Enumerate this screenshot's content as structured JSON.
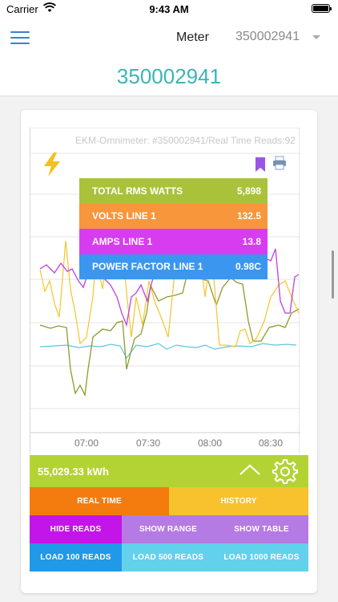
{
  "status": {
    "carrier": "Carrier",
    "time": "9:43 AM"
  },
  "nav": {
    "title": "Meter",
    "meter_select": "350002941"
  },
  "page_title": "350002941",
  "chart": {
    "caption": "EKM-Omnimeter: #350002941/Real Time Reads:92",
    "x_ticks": [
      "07:00",
      "07:30",
      "08:00",
      "08:30"
    ]
  },
  "tooltip": [
    {
      "label": "TOTAL RMS WATTS",
      "value": "5,898",
      "color": "#a9c23a"
    },
    {
      "label": "VOLTS LINE 1",
      "value": "132.5",
      "color": "#f7963a"
    },
    {
      "label": "AMPS LINE 1",
      "value": "13.8",
      "color": "#d83cf0"
    },
    {
      "label": "POWER FACTOR LINE 1",
      "value": "0.98C",
      "color": "#3b96f0"
    }
  ],
  "kwh": "55,029.33 kWh",
  "buttons": {
    "real_time": "REAL TIME",
    "history": "HISTORY",
    "hide_reads": "HIDE READS",
    "show_range": "SHOW RANGE",
    "show_table": "SHOW TABLE",
    "load_100": "LOAD 100 READS",
    "load_500": "LOAD 500 READS",
    "load_1000": "LOAD 1000 READS"
  },
  "colors": {
    "accent": "#3cb5b6",
    "menu": "#3b7fd4",
    "watts_series": "#8f9a2a",
    "volts_series": "#f5c42c",
    "amps_series": "#c13fe0",
    "pf_series": "#5fc3e4"
  },
  "icons": {
    "bolt": "lightning-bolt-icon",
    "bookmark": "bookmark-icon",
    "print": "printer-icon",
    "settings": "gear-icon",
    "collapse": "chevron-up-icon"
  }
}
